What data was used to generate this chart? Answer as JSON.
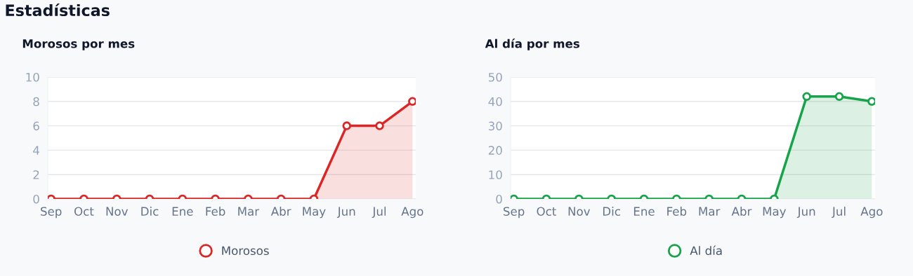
{
  "chart_data": [
    {
      "type": "area",
      "title": "Morosos por mes",
      "annotations": [
        "Estadísticas"
      ],
      "categories": [
        "Sep",
        "Oct",
        "Nov",
        "Dic",
        "Ene",
        "Feb",
        "Mar",
        "Abr",
        "May",
        "Jun",
        "Jul",
        "Ago"
      ],
      "series": [
        {
          "name": "Morosos",
          "color": "#dc2626",
          "values": [
            0,
            0,
            0,
            0,
            0,
            0,
            0,
            0,
            0,
            6,
            6,
            8
          ]
        }
      ],
      "ylim": [
        0,
        10
      ],
      "yticks": [
        0,
        2,
        4,
        6,
        8,
        10
      ],
      "grid": "y",
      "legend": "bottom",
      "marker": "circle",
      "line_style": "solid"
    },
    {
      "type": "area",
      "title": "Al día por mes",
      "categories": [
        "Sep",
        "Oct",
        "Nov",
        "Dic",
        "Ene",
        "Feb",
        "Mar",
        "Abr",
        "May",
        "Jun",
        "Jul",
        "Ago"
      ],
      "series": [
        {
          "name": "Al día",
          "color": "#16a34a",
          "values": [
            0,
            0,
            0,
            0,
            0,
            0,
            0,
            0,
            0,
            42,
            42,
            40
          ]
        }
      ],
      "ylim": [
        0,
        50
      ],
      "yticks": [
        0,
        10,
        20,
        30,
        40,
        50
      ],
      "grid": "y",
      "legend": "bottom",
      "marker": "circle",
      "line_style": "solid"
    }
  ]
}
